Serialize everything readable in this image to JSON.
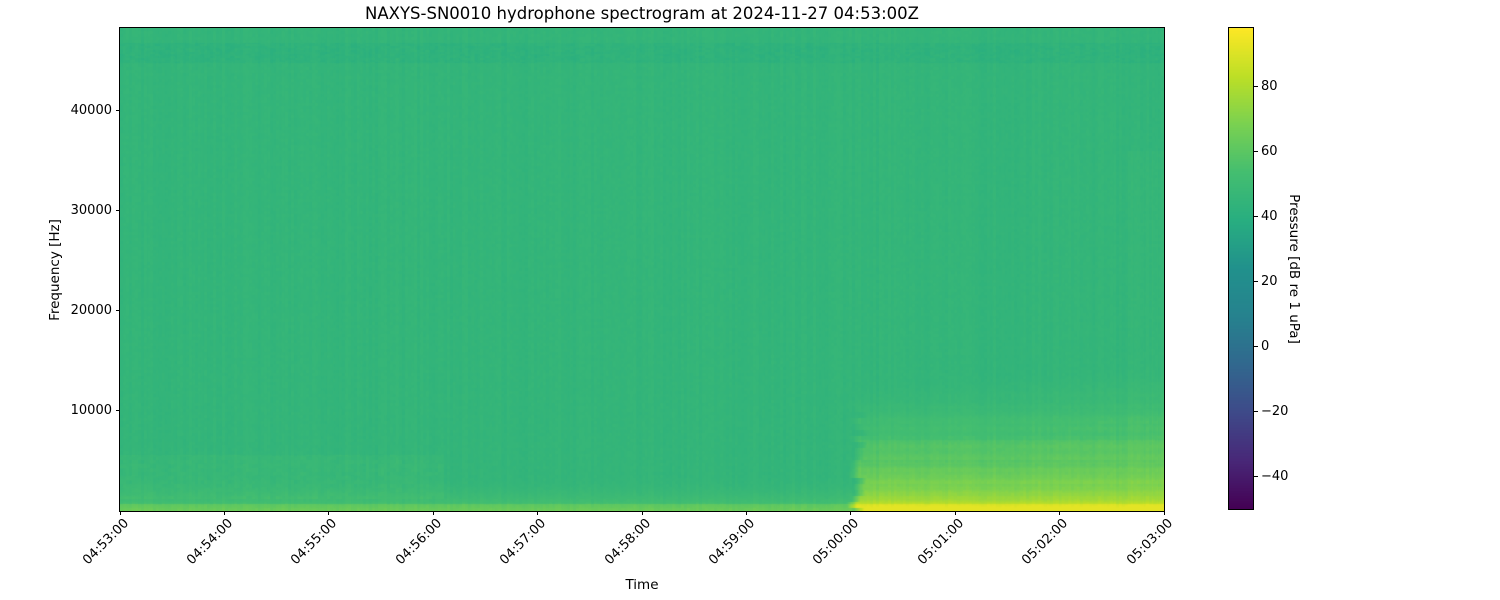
{
  "figure": {
    "background": "#ffffff",
    "spine_color": "#000000"
  },
  "chart_data": {
    "type": "heatmap",
    "subtype": "spectrogram",
    "title": "NAXYS-SN0010 hydrophone spectrogram at 2024-11-27 04:53:00Z",
    "xlabel": "Time",
    "ylabel": "Frequency [Hz]",
    "colorbar_label": "Pressure [dB re 1 uPa]",
    "x_tick_labels": [
      "04:53:00",
      "04:54:00",
      "04:55:00",
      "04:56:00",
      "04:57:00",
      "04:58:00",
      "04:59:00",
      "05:00:00",
      "05:01:00",
      "05:02:00",
      "05:03:00"
    ],
    "y_tick_values": [
      10000,
      20000,
      30000,
      40000
    ],
    "y_tick_labels": [
      "10000",
      "20000",
      "30000",
      "40000"
    ],
    "colorbar_tick_values": [
      80,
      60,
      40,
      20,
      0,
      -20,
      -40
    ],
    "colorbar_tick_labels": [
      "80",
      "60",
      "40",
      "20",
      "0",
      "−20",
      "−40"
    ],
    "freq_axis_range_hz": [
      0,
      48200
    ],
    "time_span_seconds": 600,
    "pressure_range_db": [
      -50,
      98
    ],
    "colormap": "viridis",
    "grid": false,
    "legend": null,
    "ambient_db": 45,
    "column_noise_db": 1.2,
    "pixel_noise_db": 0.8,
    "max_db_cap": 92,
    "viridis_stops": [
      [
        0.0,
        68,
        1,
        84
      ],
      [
        0.1,
        72,
        40,
        120
      ],
      [
        0.2,
        62,
        74,
        137
      ],
      [
        0.3,
        49,
        104,
        142
      ],
      [
        0.4,
        38,
        130,
        142
      ],
      [
        0.5,
        33,
        145,
        140
      ],
      [
        0.6,
        40,
        174,
        128
      ],
      [
        0.7,
        68,
        190,
        112
      ],
      [
        0.8,
        122,
        209,
        81
      ],
      [
        0.9,
        189,
        223,
        38
      ],
      [
        1.0,
        253,
        231,
        37
      ]
    ],
    "features": {
      "high_freq_dark_band": {
        "f_lo_hz": 44800,
        "f_hi_hz": 46800,
        "delta_db": -2.2,
        "mottle_db": 1.3
      },
      "low_freq_ambient_ramp": {
        "f_top_hz": 3600,
        "delta_db_at_0hz": 13,
        "exponent": 2
      },
      "bottom_edge_line": {
        "f_top_hz": 700,
        "delta_db": 7
      },
      "left_low_band": {
        "t_end_frac": 0.31,
        "f_lo_hz": 1200,
        "f_hi_hz": 5600,
        "delta_db": 2.2
      },
      "vessel_noise_event": {
        "t_start_frac": 0.701,
        "f_top_hz": 12500,
        "f_top_growth": 0.18,
        "delta_db_at_0hz": 30,
        "exponent": 1.4,
        "band_ripple_db": 2.0
      },
      "right_edge_brightening": {
        "t_start_frac": 0.965,
        "f_top_hz": 36000,
        "delta_db": 1.5
      }
    }
  }
}
